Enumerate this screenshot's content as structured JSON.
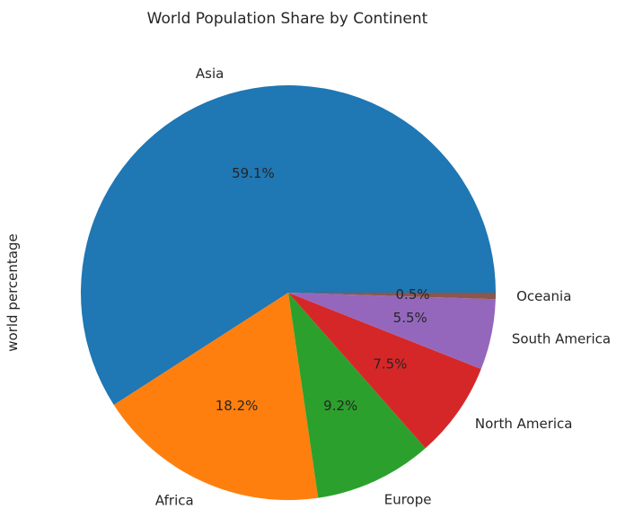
{
  "chart_data": {
    "type": "pie",
    "title": "World Population Share by Continent",
    "ylabel": "world percentage",
    "start_angle_deg": 0,
    "direction": "counterclockwise",
    "slices": [
      {
        "label": "Asia",
        "value": 59.1,
        "pct_label": "59.1%",
        "color": "#1f77b4"
      },
      {
        "label": "Africa",
        "value": 18.2,
        "pct_label": "18.2%",
        "color": "#ff7f0e"
      },
      {
        "label": "Europe",
        "value": 9.2,
        "pct_label": "9.2%",
        "color": "#2ca02c"
      },
      {
        "label": "North America",
        "value": 7.5,
        "pct_label": "7.5%",
        "color": "#d62728"
      },
      {
        "label": "South America",
        "value": 5.5,
        "pct_label": "5.5%",
        "color": "#9467bd"
      },
      {
        "label": "Oceania",
        "value": 0.5,
        "pct_label": "0.5%",
        "color": "#8c564b"
      }
    ]
  }
}
